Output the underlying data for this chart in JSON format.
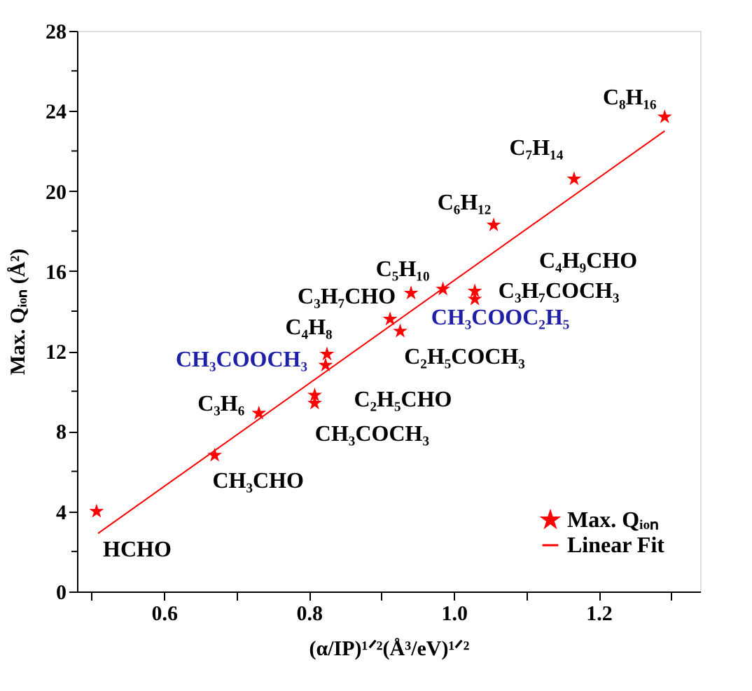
{
  "chart_data": {
    "type": "scatter",
    "xlabel": "(α/IP)¹ᐟ²(Å³/eV)¹ᐟ²",
    "ylabel": "Max. Qᵢₒₙ (Å²)",
    "x": [
      0.507,
      0.67,
      0.731,
      0.808,
      0.808,
      0.823,
      0.825,
      0.912,
      0.926,
      0.941,
      0.985,
      1.029,
      1.029,
      1.055,
      1.166,
      1.291
    ],
    "series": [
      {
        "name": "Max. Qᵢₒₙ",
        "color": "#ff0000",
        "marker": "star",
        "values": [
          4.0,
          6.8,
          8.9,
          9.4,
          9.8,
          11.3,
          11.85,
          13.6,
          13.0,
          14.9,
          15.1,
          14.6,
          15.0,
          18.3,
          20.6,
          23.7
        ]
      },
      {
        "name": "Linear Fit",
        "type": "line",
        "color": "#ff0000",
        "x": [
          0.509,
          1.291
        ],
        "values": [
          2.9,
          23.0
        ]
      }
    ],
    "xlim": [
      0.48,
      1.34
    ],
    "ylim": [
      0,
      28
    ],
    "xticks": [
      {
        "value": 0.5,
        "label": null
      },
      {
        "value": 0.6,
        "label": "0.6"
      },
      {
        "value": 0.7,
        "label": null
      },
      {
        "value": 0.8,
        "label": "0.8"
      },
      {
        "value": 0.9,
        "label": null
      },
      {
        "value": 1.0,
        "label": "1.0"
      },
      {
        "value": 1.1,
        "label": null
      },
      {
        "value": 1.2,
        "label": "1.2"
      },
      {
        "value": 1.3,
        "label": null
      }
    ],
    "yticks": [
      0,
      {
        "value": 2,
        "label": null
      },
      4,
      {
        "value": 6,
        "label": null
      },
      8,
      {
        "value": 10,
        "label": null
      },
      12,
      {
        "value": 14,
        "label": null
      },
      16,
      {
        "value": 18,
        "label": null
      },
      20,
      {
        "value": 22,
        "label": null
      },
      24,
      {
        "value": 26,
        "label": null
      },
      28
    ],
    "grid": false,
    "legend": "bottom right",
    "annotations": [
      {
        "text": "HCHO",
        "x": 0.507,
        "y": 4.0
      },
      {
        "text": "CH₃CHO",
        "x": 0.67,
        "y": 6.8
      },
      {
        "text": "C₃H₆",
        "x": 0.731,
        "y": 8.9
      },
      {
        "text": "CH₃COCH₃",
        "x": 0.808,
        "y": 9.4
      },
      {
        "text": "C₂H₅CHO",
        "x": 0.808,
        "y": 9.8
      },
      {
        "text": "CH₃COOCH₃",
        "x": 0.823,
        "y": 11.3
      },
      {
        "text": "C₄H₈",
        "x": 0.825,
        "y": 11.85
      },
      {
        "text": "C₂H₅COCH₃",
        "x": 0.926,
        "y": 13.0
      },
      {
        "text": "C₃H₇CHO",
        "x": 0.912,
        "y": 13.6
      },
      {
        "text": "CH₃COOC₂H₅",
        "x": 0.985,
        "y": 15.1
      },
      {
        "text": "C₅H₁₀",
        "x": 0.941,
        "y": 14.9
      },
      {
        "text": "C₃H₇COCH₃",
        "x": 1.029,
        "y": 14.6
      },
      "C₄H₉CHO",
      {
        "text": "C₆H₁₂",
        "x": 1.055,
        "y": 18.3
      },
      {
        "text": "C₇H₁₄",
        "x": 1.166,
        "y": 20.6
      },
      {
        "text": "C₈H₁₆",
        "x": 1.291,
        "y": 23.7
      }
    ]
  }
}
